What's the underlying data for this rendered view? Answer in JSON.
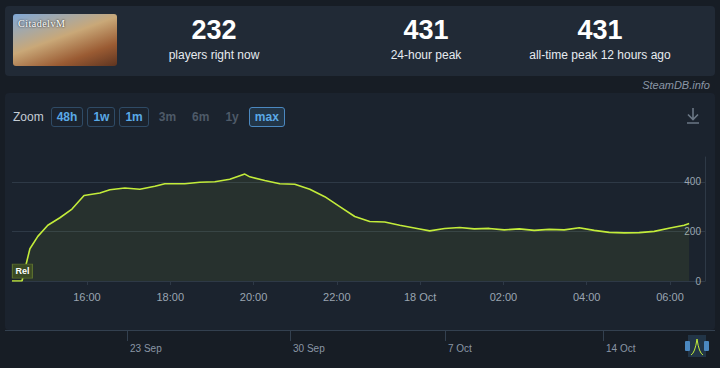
{
  "header": {
    "thumbnail_text": "CitadelvM",
    "stats": [
      {
        "value": 232,
        "label": "players right now"
      },
      {
        "value": 431,
        "label": "24-hour peak"
      },
      {
        "value": 431,
        "label": "all-time peak 12 hours ago"
      }
    ],
    "source": "SteamDB.info"
  },
  "toolbar": {
    "label": "Zoom",
    "buttons": [
      {
        "text": "48h",
        "enabled": true,
        "selected": false
      },
      {
        "text": "1w",
        "enabled": true,
        "selected": false
      },
      {
        "text": "1m",
        "enabled": true,
        "selected": false
      },
      {
        "text": "3m",
        "enabled": false,
        "selected": false
      },
      {
        "text": "6m",
        "enabled": false,
        "selected": false
      },
      {
        "text": "1y",
        "enabled": false,
        "selected": false
      },
      {
        "text": "max",
        "enabled": true,
        "selected": true
      }
    ]
  },
  "chart_data": {
    "type": "line",
    "color": "#c3ec3a",
    "x": [
      14.2,
      14.44,
      14.63,
      14.82,
      15.06,
      15.35,
      15.64,
      15.93,
      16.31,
      16.55,
      16.91,
      17.27,
      17.63,
      17.87,
      18.35,
      18.71,
      19.07,
      19.43,
      19.79,
      19.91,
      20.27,
      20.63,
      20.99,
      21.35,
      21.71,
      22.07,
      22.43,
      22.79,
      23.15,
      23.51,
      23.99,
      24.23,
      24.59,
      24.95,
      25.3,
      25.66,
      26.02,
      26.38,
      26.74,
      27.1,
      27.46,
      27.82,
      28.18,
      28.54,
      28.9,
      29.26,
      29.62,
      30.0,
      30.34,
      30.46
    ],
    "values": [
      0,
      0,
      130,
      180,
      225,
      255,
      290,
      345,
      355,
      368,
      375,
      370,
      382,
      392,
      392,
      398,
      400,
      410,
      431,
      420,
      405,
      392,
      390,
      370,
      340,
      300,
      260,
      240,
      238,
      225,
      210,
      202,
      212,
      216,
      210,
      212,
      206,
      210,
      204,
      208,
      206,
      215,
      204,
      196,
      194,
      195,
      200,
      214,
      225,
      232
    ],
    "xlim": [
      14.2,
      30.84
    ],
    "xticks": [
      {
        "value": 16,
        "label": "16:00"
      },
      {
        "value": 18,
        "label": "18:00"
      },
      {
        "value": 20,
        "label": "20:00"
      },
      {
        "value": 22,
        "label": "22:00"
      },
      {
        "value": 24,
        "label": "18 Oct"
      },
      {
        "value": 26,
        "label": "02:00"
      },
      {
        "value": 28,
        "label": "04:00"
      },
      {
        "value": 30,
        "label": "06:00"
      }
    ],
    "ylim": [
      0,
      500
    ],
    "yticks": [
      0,
      200,
      400
    ],
    "grid": true,
    "annotations": [
      {
        "x": 14.45,
        "y": 40,
        "text": "Rel"
      }
    ]
  },
  "navigator": {
    "labels": [
      "23 Sep",
      "30 Sep",
      "7 Oct",
      "14 Oct"
    ]
  }
}
